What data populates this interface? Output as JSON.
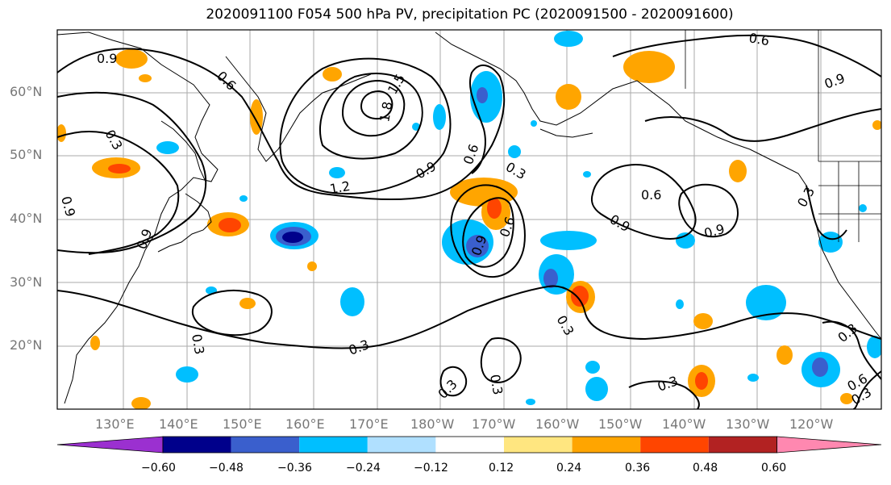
{
  "title": "2020091100 F054 500 hPa PV, precipitation PC (2020091500 - 2020091600)",
  "lat_labels": [
    "60°N",
    "50°N",
    "40°N",
    "30°N",
    "20°N"
  ],
  "lon_labels": [
    "130°E",
    "140°E",
    "150°E",
    "160°E",
    "170°E",
    "180°W",
    "170°W",
    "160°W",
    "150°W",
    "140°W",
    "130°W",
    "120°W"
  ],
  "colorbar": {
    "ticks": [
      "−0.60",
      "−0.48",
      "−0.36",
      "−0.24",
      "−0.12",
      "0.12",
      "0.24",
      "0.36",
      "0.48",
      "0.60"
    ],
    "colors": [
      "#9b30d0",
      "#00008b",
      "#3a5fcd",
      "#00bfff",
      "#b0e0ff",
      "#ffffff",
      "#ffe680",
      "#ffa500",
      "#ff4500",
      "#b22222",
      "#ff88b0"
    ]
  },
  "contour_labels": [
    "0.9",
    "0.6",
    "0.3",
    "0.9",
    "1.5",
    "1.8",
    "1.2",
    "0.9",
    "0.6",
    "0.3",
    "0.6",
    "0.9",
    "0.9",
    "0.3",
    "0.9",
    "0.6",
    "0.3",
    "0.3",
    "0.3",
    "0.3",
    "0.3",
    "0.3",
    "0.6",
    "0.3",
    "0.3",
    "0.9",
    "0.6",
    "0.9"
  ]
}
